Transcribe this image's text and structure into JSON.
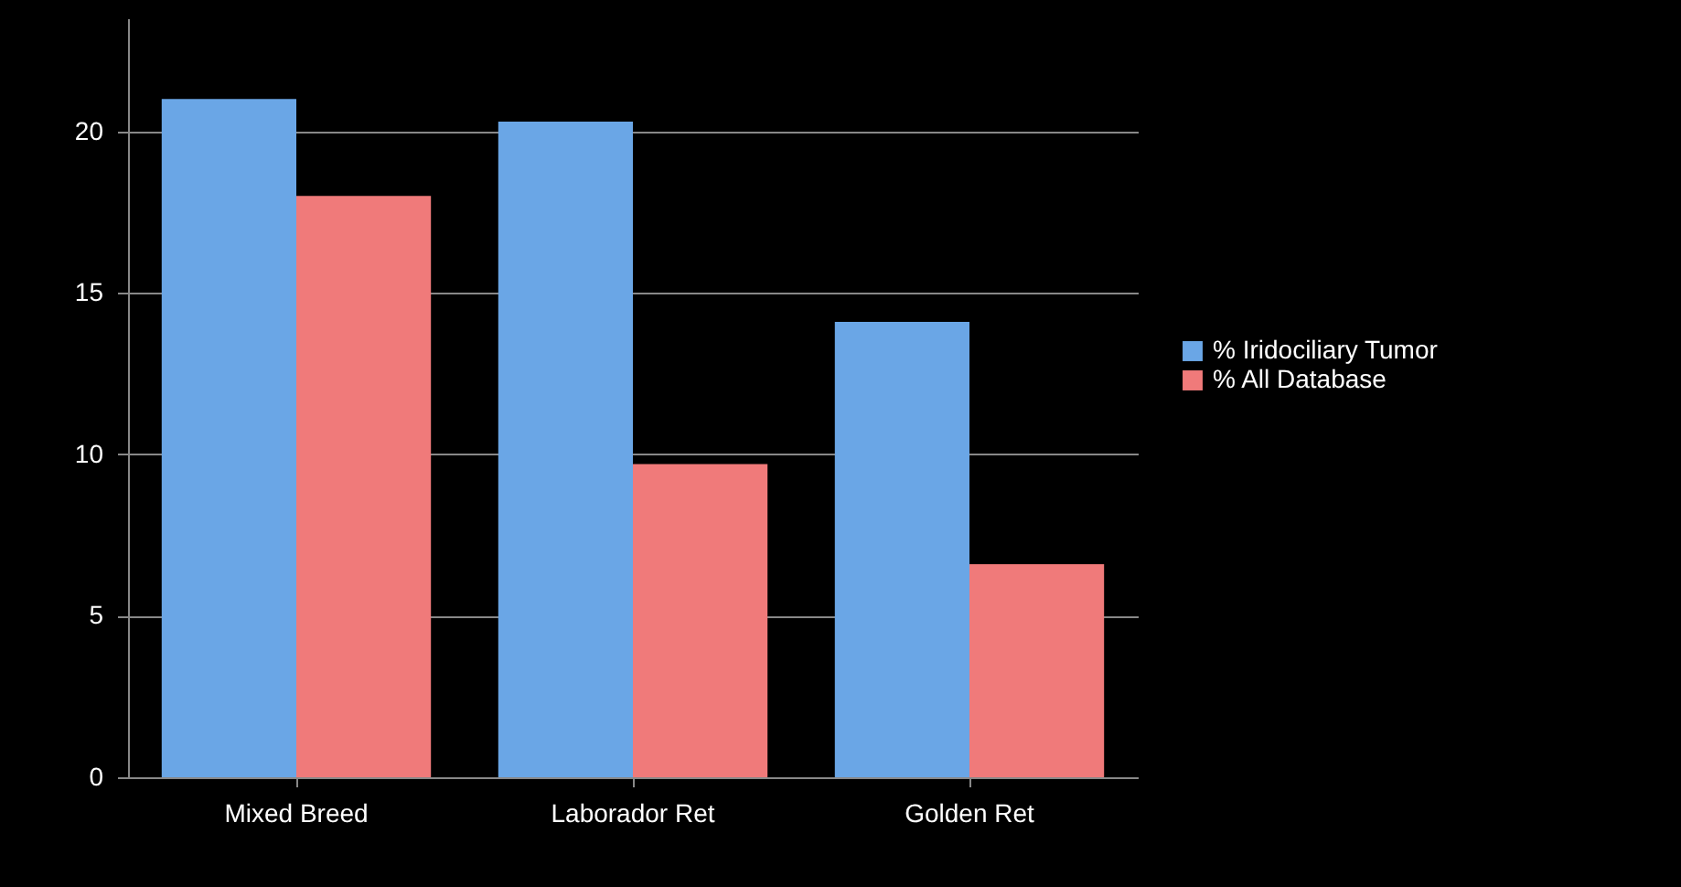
{
  "chart_data": {
    "type": "bar",
    "categories": [
      "Mixed Breed",
      "Laborador Ret",
      "Golden Ret"
    ],
    "series": [
      {
        "name": "% Iridociliary Tumor",
        "color": "#6aa6e6",
        "values": [
          21,
          20.3,
          14.1
        ]
      },
      {
        "name": "% All Database",
        "color": "#f07a7a",
        "values": [
          18,
          9.7,
          6.6
        ]
      }
    ],
    "ylim": [
      0,
      23.5
    ],
    "yticks": [
      0,
      5,
      10,
      15,
      20
    ],
    "grid": "y",
    "legend": "right"
  }
}
